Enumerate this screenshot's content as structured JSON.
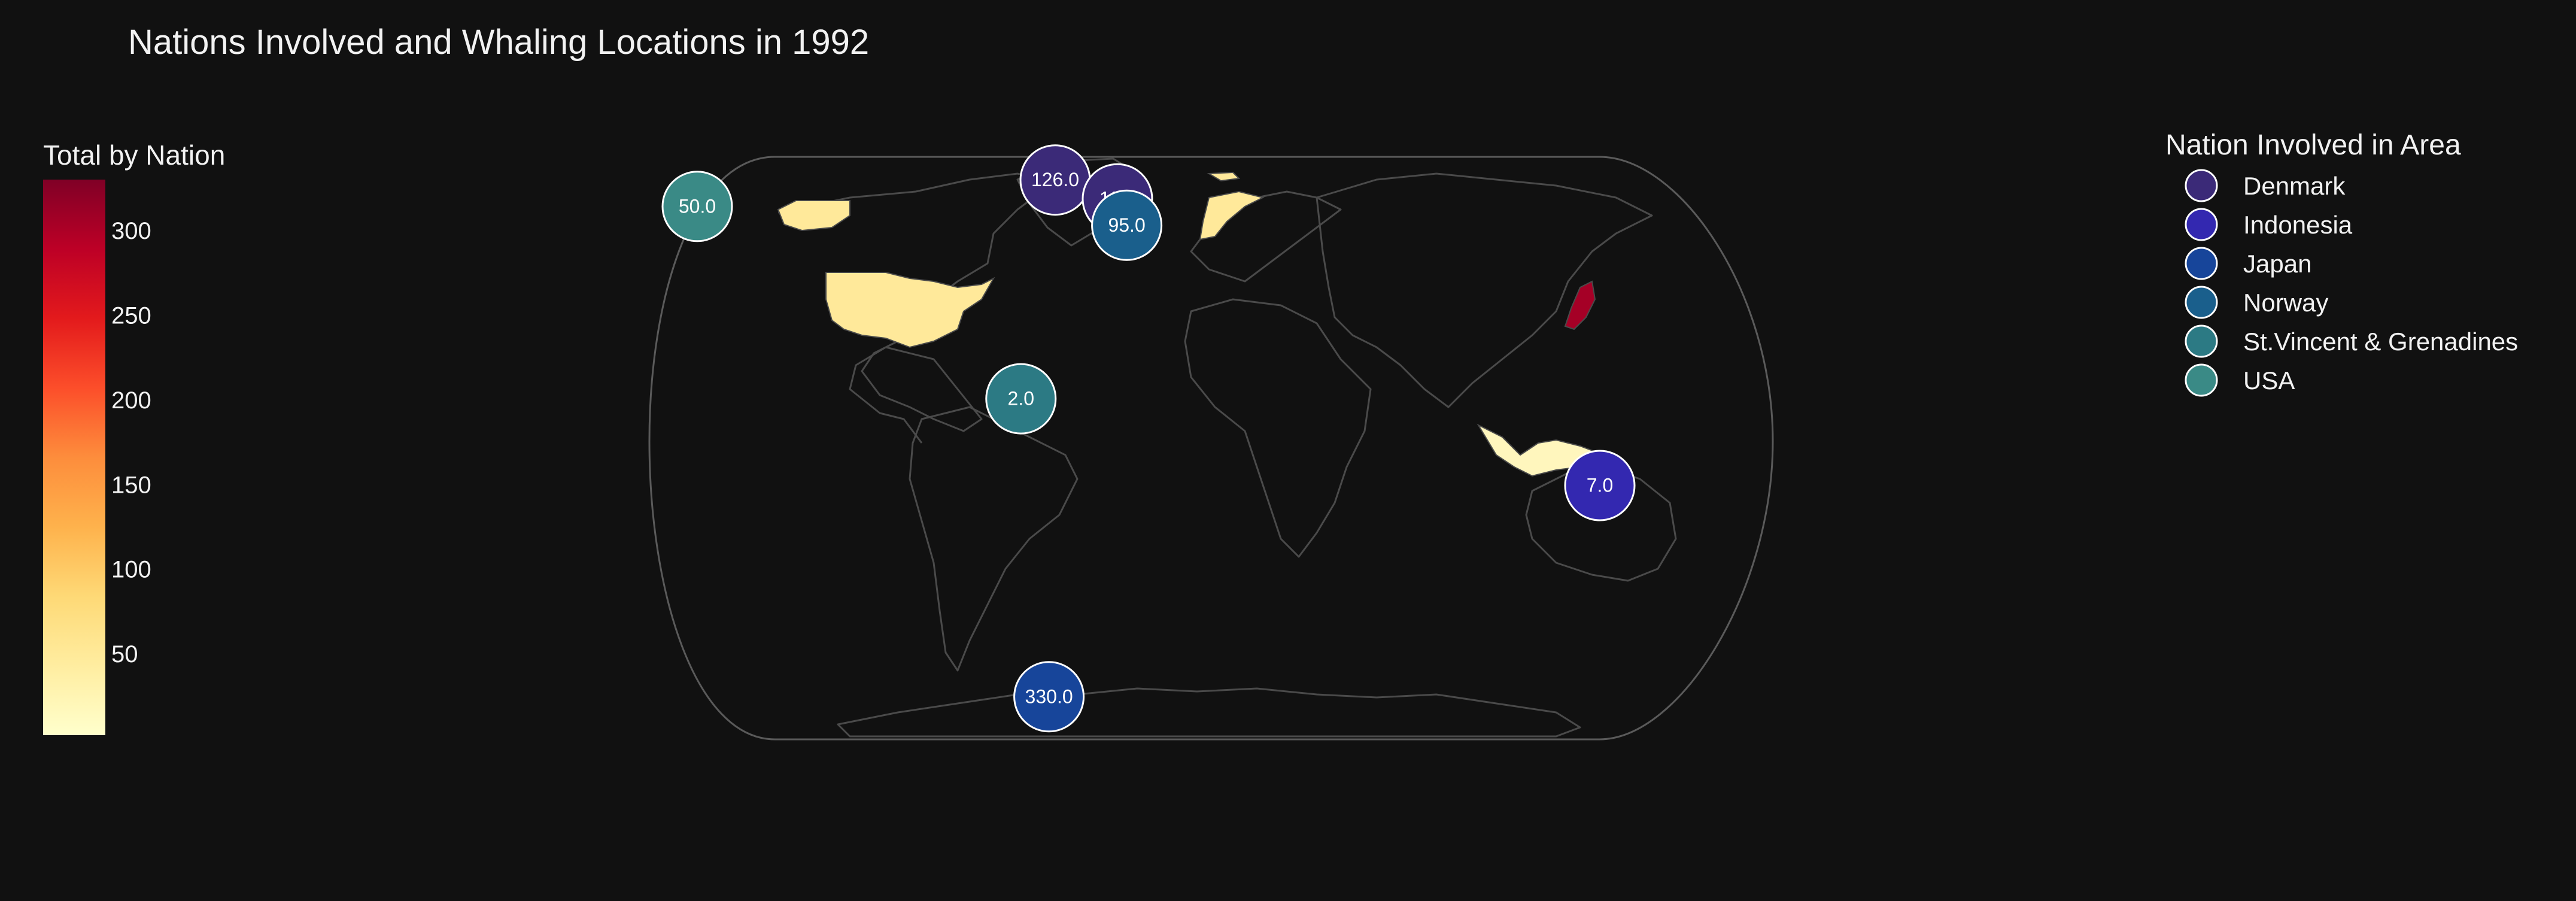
{
  "title": "Nations Involved and Whaling Locations in 1992",
  "colorbar": {
    "title": "Total by Nation",
    "ticks": [
      50,
      100,
      150,
      200,
      250,
      300
    ],
    "min": 2,
    "max": 330,
    "scale": [
      "#ffffcc",
      "#ffeda0",
      "#fed976",
      "#feb24c",
      "#fd8d3c",
      "#fc4e2a",
      "#e31a1c",
      "#bd0026",
      "#800026"
    ]
  },
  "legend": {
    "title": "Nation Involved in Area",
    "items": [
      {
        "label": "Denmark",
        "color": "#3b2a78"
      },
      {
        "label": "Indonesia",
        "color": "#3328b0"
      },
      {
        "label": "Japan",
        "color": "#17459a"
      },
      {
        "label": "Norway",
        "color": "#1a5f8c"
      },
      {
        "label": "St.Vincent & Grenadines",
        "color": "#2c7a84"
      },
      {
        "label": "USA",
        "color": "#3a8a86"
      }
    ]
  },
  "chart_data": {
    "type": "map",
    "projection": "natural-earth",
    "choropleth_colored_countries": [
      {
        "country": "USA",
        "value": 50
      },
      {
        "country": "Indonesia",
        "value": 7
      },
      {
        "country": "Norway",
        "value": 95
      },
      {
        "country": "Japan",
        "value": 330
      }
    ],
    "bubbles": [
      {
        "nation": "USA",
        "label": "50.0",
        "value": 50.0,
        "lon": -165,
        "lat": 64
      },
      {
        "nation": "Denmark",
        "label": "126.0",
        "value": 126.0,
        "lon": -50,
        "lat": 71
      },
      {
        "nation": "Denmark",
        "label": "11.0",
        "value": 11.0,
        "lon": -30,
        "lat": 66
      },
      {
        "nation": "Norway",
        "label": "95.0",
        "value": 95.0,
        "lon": -27,
        "lat": 59
      },
      {
        "nation": "St.Vincent & Grenadines",
        "label": "2.0",
        "value": 2.0,
        "lon": -61,
        "lat": 13
      },
      {
        "nation": "Indonesia",
        "label": "7.0",
        "value": 7.0,
        "lon": 125,
        "lat": -10
      },
      {
        "nation": "Japan",
        "label": "330.0",
        "value": 330.0,
        "lon": -52,
        "lat": -66
      }
    ]
  }
}
